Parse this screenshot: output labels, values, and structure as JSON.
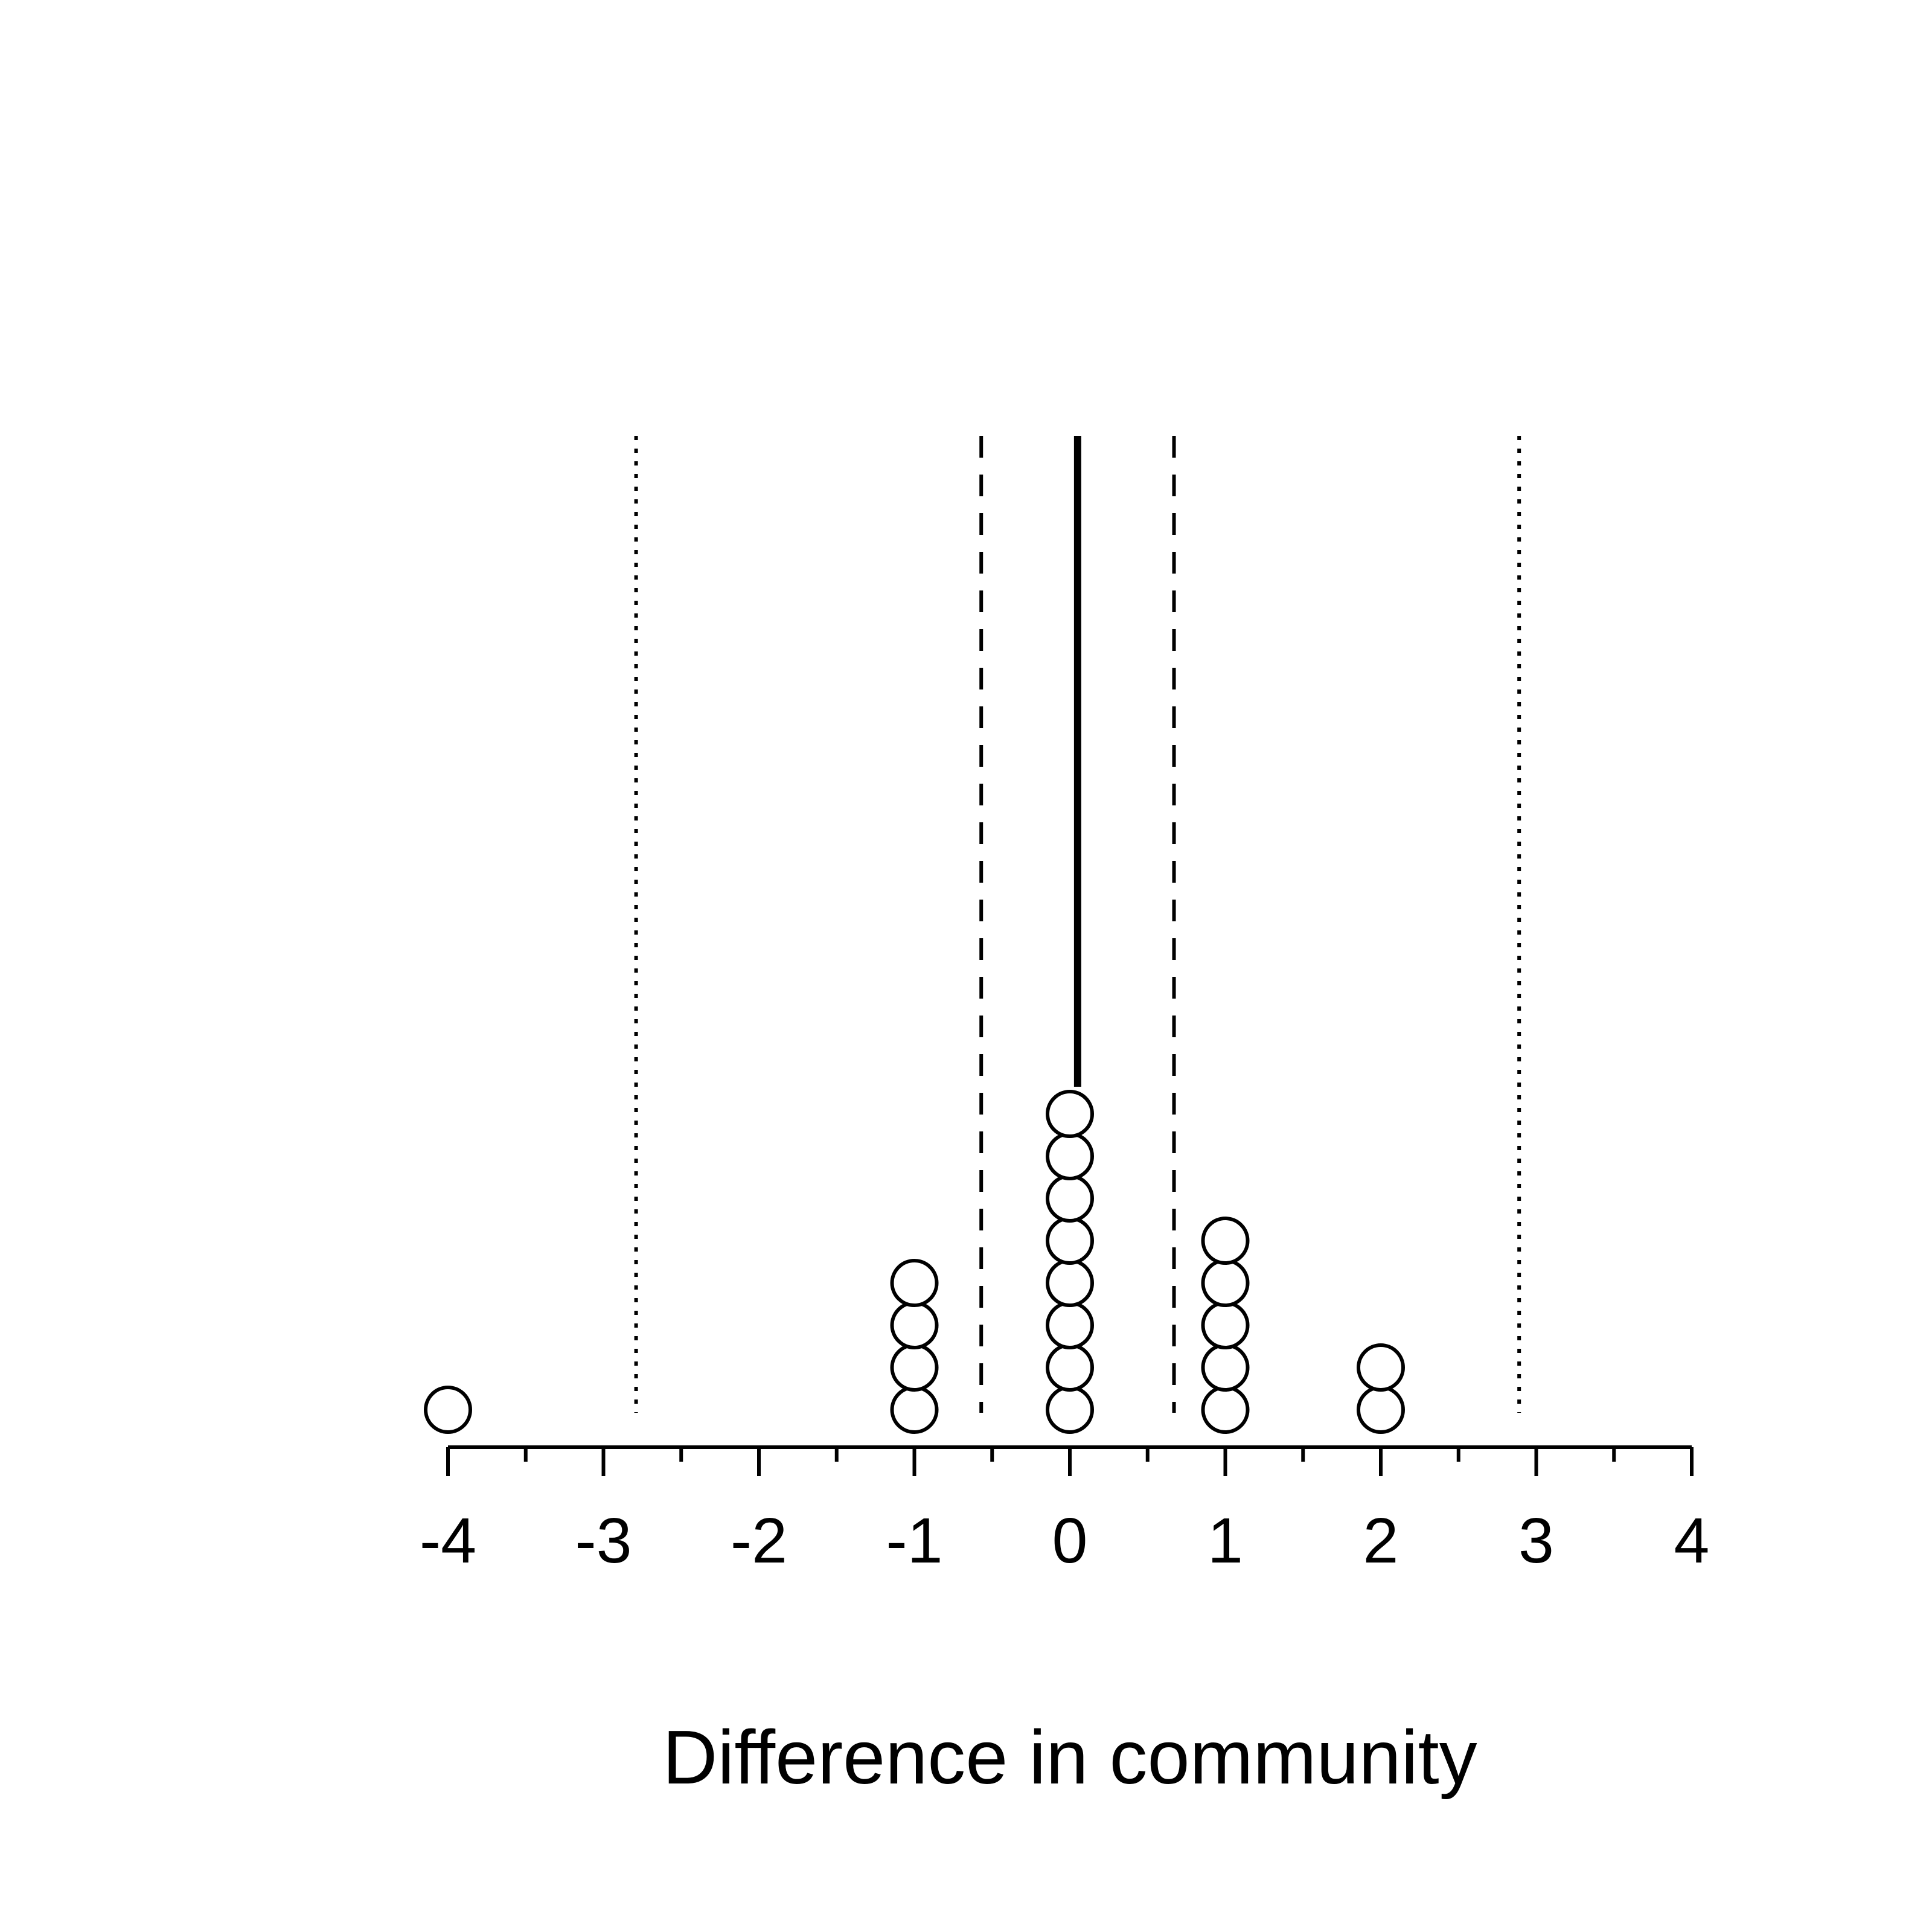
{
  "chart_data": {
    "type": "scatter",
    "subtype": "dot-plot",
    "title": "",
    "xlabel": "Difference in community",
    "ylabel": "",
    "xlim": [
      -4,
      4
    ],
    "x_ticks": [
      -4,
      -3,
      -2,
      -1,
      0,
      1,
      2,
      3,
      4
    ],
    "x_tick_labels": [
      "-4",
      "-3",
      "-2",
      "-1",
      "0",
      "1",
      "2",
      "3",
      "4"
    ],
    "x_minor_ticks": [
      -3.5,
      -2.5,
      -1.5,
      -0.5,
      0.5,
      1.5,
      2.5,
      3.5
    ],
    "grid": false,
    "stacks": [
      {
        "x": -4,
        "count": 1
      },
      {
        "x": -1,
        "count": 4
      },
      {
        "x": 0,
        "count": 8
      },
      {
        "x": 1,
        "count": 5
      },
      {
        "x": 2,
        "count": 2
      }
    ],
    "reference_lines": [
      {
        "x": 0.05,
        "style": "solid"
      },
      {
        "x": -0.57,
        "style": "dashed"
      },
      {
        "x": 0.67,
        "style": "dashed"
      },
      {
        "x": -2.79,
        "style": "dotted"
      },
      {
        "x": 2.89,
        "style": "dotted"
      }
    ],
    "colors": {
      "ink": "#000000",
      "background": "#ffffff",
      "marker_fill": "#ffffff"
    }
  }
}
